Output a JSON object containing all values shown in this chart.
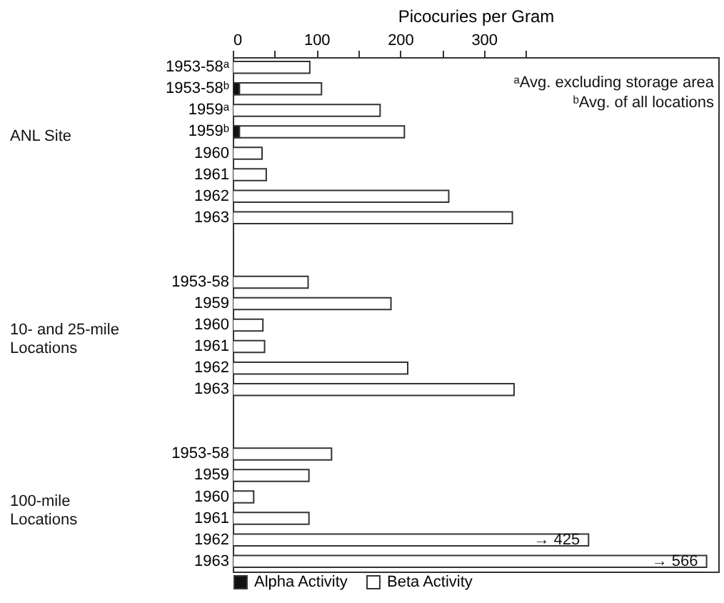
{
  "chart_data": {
    "type": "bar",
    "orientation": "horizontal",
    "xlabel": "Picocuries per Gram",
    "categories": [
      "1953-58ᵃ",
      "1953-58ᵇ",
      "1959ᵃ",
      "1959ᵇ",
      "1960",
      "1961",
      "1962",
      "1963",
      null,
      null,
      "1953-58",
      "1959",
      "1960",
      "1961",
      "1962",
      "1963",
      null,
      null,
      "1953-58",
      "1959",
      "1960",
      "1961",
      "1962",
      "1963"
    ],
    "series": [
      {
        "name": "Alpha Activity",
        "color": "#111111",
        "values": [
          null,
          8,
          null,
          8,
          null,
          null,
          null,
          null,
          null,
          null,
          null,
          null,
          null,
          null,
          null,
          null,
          null,
          null,
          null,
          null,
          null,
          null,
          null,
          null
        ]
      },
      {
        "name": "Beta Activity",
        "color": "#ffffff",
        "values": [
          92,
          106,
          176,
          205,
          35,
          40,
          258,
          334,
          null,
          null,
          90,
          189,
          36,
          38,
          209,
          336,
          null,
          null,
          118,
          91,
          25,
          91,
          425,
          566
        ],
        "value_labels": [
          null,
          null,
          null,
          null,
          null,
          null,
          null,
          null,
          null,
          null,
          null,
          null,
          null,
          null,
          null,
          null,
          null,
          null,
          null,
          null,
          null,
          null,
          "→ 425",
          "→ 566"
        ]
      }
    ],
    "xlim": [
      0,
      580
    ],
    "xticks": [
      0,
      {
        "value": 50,
        "label": null
      },
      100,
      {
        "value": 150,
        "label": null
      },
      200,
      {
        "value": 250,
        "label": null
      },
      300,
      {
        "value": 350,
        "label": null
      }
    ],
    "legend": "bottom",
    "annotations": [
      "ANL Site",
      "10- and 25-mile\nLocations",
      "100-mile\nLocations",
      "ᵃAvg. excluding storage area",
      "ᵇAvg. of all locations"
    ]
  }
}
